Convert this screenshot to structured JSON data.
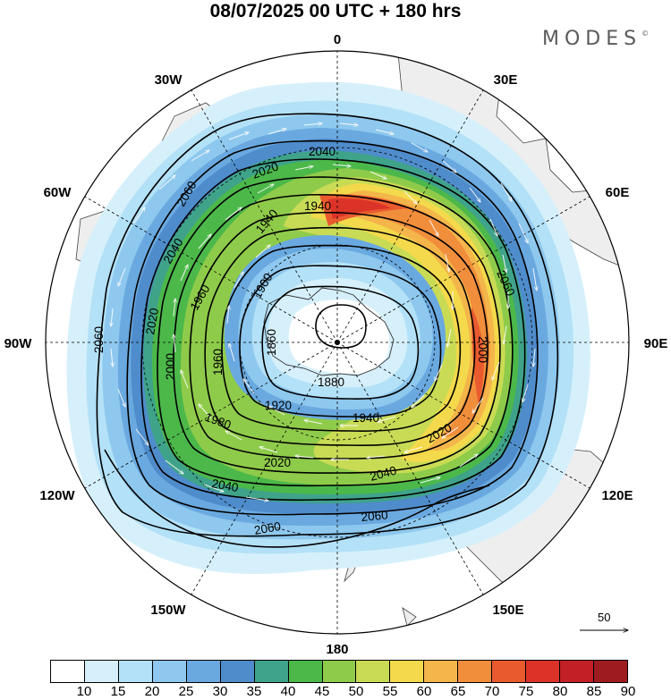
{
  "header": {
    "title": "08/07/2025  00 UTC  + 180 hrs",
    "brand": "MODES"
  },
  "map": {
    "projection": "polar-stereographic-south",
    "lon_labels": {
      "top": "0",
      "top_left": "30W",
      "top_right": "30E",
      "upper_left": "60W",
      "upper_right": "60E",
      "left": "90W",
      "right": "90E",
      "lower_left": "120W",
      "lower_right": "120E",
      "bottom_left": "150W",
      "bottom_right": "150E",
      "bottom": "180"
    },
    "contour_labels": [
      {
        "id": "c1",
        "text": "2040"
      },
      {
        "id": "c2",
        "text": "2020"
      },
      {
        "id": "c3",
        "text": "1940"
      },
      {
        "id": "c4",
        "text": "1940"
      },
      {
        "id": "c5",
        "text": "2060"
      },
      {
        "id": "c6",
        "text": "2040"
      },
      {
        "id": "c7",
        "text": "1900"
      },
      {
        "id": "c8",
        "text": "1960"
      },
      {
        "id": "c9",
        "text": "2020"
      },
      {
        "id": "c10",
        "text": "2060"
      },
      {
        "id": "c11",
        "text": "2060"
      },
      {
        "id": "c12",
        "text": "1860"
      },
      {
        "id": "c13",
        "text": "1880"
      },
      {
        "id": "c14",
        "text": "1960"
      },
      {
        "id": "c15",
        "text": "2000"
      },
      {
        "id": "c16",
        "text": "2000"
      },
      {
        "id": "c17",
        "text": "1920"
      },
      {
        "id": "c18",
        "text": "1940"
      },
      {
        "id": "c19",
        "text": "1980"
      },
      {
        "id": "c20",
        "text": "2020"
      },
      {
        "id": "c21",
        "text": "2020"
      },
      {
        "id": "c22",
        "text": "2040"
      },
      {
        "id": "c23",
        "text": "2040"
      },
      {
        "id": "c24",
        "text": "2060"
      },
      {
        "id": "c25",
        "text": "2060"
      }
    ],
    "reference_vector": "50"
  },
  "colorbar": {
    "labels": [
      "10",
      "15",
      "20",
      "25",
      "30",
      "35",
      "40",
      "45",
      "50",
      "55",
      "60",
      "65",
      "70",
      "75",
      "80",
      "85",
      "90"
    ],
    "colors": [
      "#ffffff",
      "#d6f0fb",
      "#b3e1f7",
      "#8ec8ee",
      "#6aa9e0",
      "#4f8ccb",
      "#3fa38a",
      "#4cb84a",
      "#8fcb4a",
      "#c9db55",
      "#f3d94b",
      "#f4b54a",
      "#f18e3c",
      "#ea5a2f",
      "#dc3328",
      "#c21f27",
      "#9e1b1f"
    ]
  }
}
